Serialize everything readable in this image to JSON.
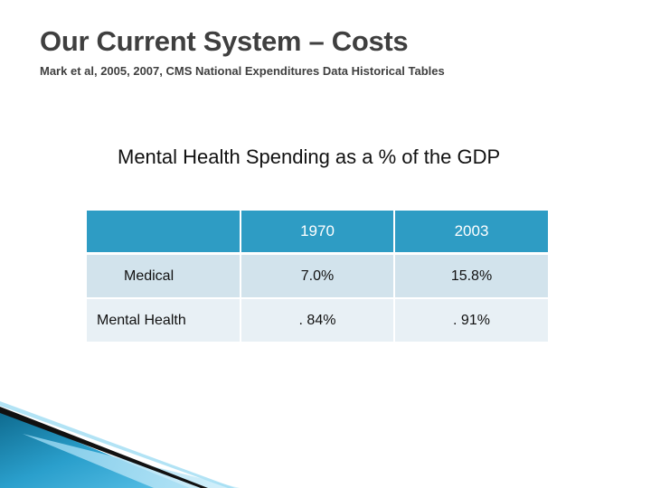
{
  "slide": {
    "title": "Our Current System – Costs",
    "subtitle": "Mark et al, 2005, 2007, CMS National Expenditures Data Historical Tables"
  },
  "table": {
    "caption": "Mental Health Spending as a % of the GDP",
    "header": [
      "",
      "1970",
      "2003"
    ],
    "rows": [
      {
        "label": "Medical",
        "values": [
          "7.0%",
          "15.8%"
        ]
      },
      {
        "label": "Mental Health",
        "values": [
          ". 84%",
          ". 91%"
        ]
      }
    ]
  },
  "colors": {
    "header_fill": "#2e9cc4",
    "row_fill_1": "#d2e3ec",
    "row_fill_2": "#e8f0f5",
    "accent_dark": "#0b5a7a"
  }
}
